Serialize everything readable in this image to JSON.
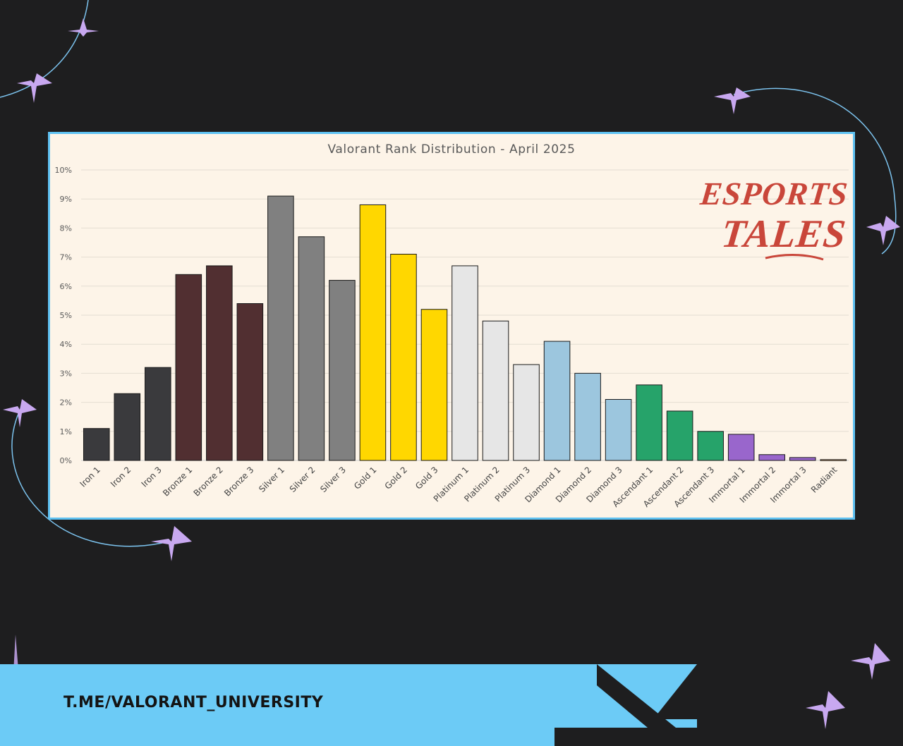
{
  "chart_data": {
    "type": "bar",
    "title": "Valorant Rank Distribution  - April 2025",
    "categories": [
      "Iron 1",
      "Iron 2",
      "Iron 3",
      "Bronze 1",
      "Bronze 2",
      "Bronze 3",
      "Silver 1",
      "Silver 2",
      "Silver 3",
      "Gold 1",
      "Gold 2",
      "Gold 3",
      "Platinum 1",
      "Platinum 2",
      "Platinum 3",
      "Diamond 1",
      "Diamond 2",
      "Diamond 3",
      "Ascendant 1",
      "Ascendant 2",
      "Ascendant 3",
      "Immortal 1",
      "Immortal 2",
      "Immortal 3",
      "Radiant"
    ],
    "values": [
      1.1,
      2.3,
      3.2,
      6.4,
      6.7,
      5.4,
      9.1,
      7.7,
      6.2,
      8.8,
      7.1,
      5.2,
      6.7,
      4.8,
      3.3,
      4.1,
      3.0,
      2.1,
      2.6,
      1.7,
      1.0,
      0.9,
      0.2,
      0.1,
      0.03
    ],
    "bar_colors": [
      "#3a3a3d",
      "#3a3a3d",
      "#3a3a3d",
      "#512f31",
      "#512f31",
      "#512f31",
      "#808080",
      "#808080",
      "#808080",
      "#ffd700",
      "#ffd700",
      "#ffd700",
      "#e6e6e6",
      "#e6e6e6",
      "#e6e6e6",
      "#9cc6de",
      "#9cc6de",
      "#9cc6de",
      "#26a36a",
      "#26a36a",
      "#26a36a",
      "#9966cc",
      "#9966cc",
      "#9966cc",
      "#f2c088"
    ],
    "yticks": [
      "0%",
      "1%",
      "2%",
      "3%",
      "4%",
      "5%",
      "6%",
      "7%",
      "8%",
      "9%",
      "10%"
    ],
    "ylim": [
      0,
      10
    ],
    "unit": "%",
    "grid": true,
    "xlabel": "",
    "ylabel": ""
  },
  "logo": {
    "line1": "ESPORTS",
    "line2": "TALES"
  },
  "banner": {
    "link_text": "T.ME/VALORANT_UNIVERSITY"
  },
  "colors": {
    "background": "#1e1e1f",
    "chart_bg": "#fdf4e8",
    "frame": "#5ec1f1",
    "banner": "#6ccbf6",
    "accent_star": "#c8a8f0",
    "logo": "#c9463a"
  }
}
